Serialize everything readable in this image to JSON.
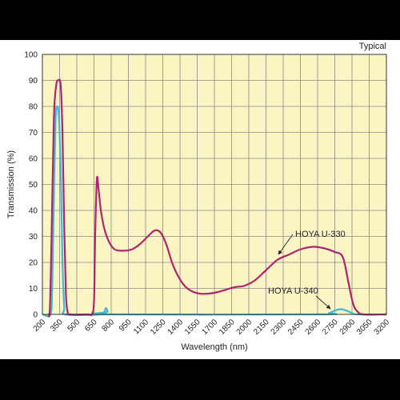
{
  "chart_data": {
    "type": "line",
    "note": "Typical",
    "xlabel": "Wavelength (nm)",
    "ylabel": "Transmission (%)",
    "xlim": [
      200,
      3200
    ],
    "ylim": [
      0,
      100
    ],
    "x_ticks": [
      200,
      350,
      500,
      650,
      800,
      950,
      1100,
      1250,
      1400,
      1550,
      1700,
      1850,
      2000,
      2150,
      2300,
      2450,
      2600,
      2750,
      2900,
      3050,
      3200
    ],
    "y_ticks": [
      0,
      10,
      20,
      30,
      40,
      50,
      60,
      70,
      80,
      90,
      100
    ],
    "grid": true,
    "background_color": "#fbf5c4",
    "grid_color": "#8a8a8a",
    "series": [
      {
        "name": "HOYA U-330",
        "color": "#b0236e",
        "points": [
          [
            250,
            0
          ],
          [
            265,
            2
          ],
          [
            280,
            30
          ],
          [
            300,
            75
          ],
          [
            320,
            88
          ],
          [
            340,
            90
          ],
          [
            360,
            88
          ],
          [
            375,
            70
          ],
          [
            390,
            35
          ],
          [
            405,
            8
          ],
          [
            420,
            1
          ],
          [
            440,
            0
          ],
          [
            600,
            0
          ],
          [
            630,
            0
          ],
          [
            650,
            5
          ],
          [
            660,
            30
          ],
          [
            675,
            52
          ],
          [
            690,
            48
          ],
          [
            710,
            40
          ],
          [
            740,
            33
          ],
          [
            780,
            28
          ],
          [
            830,
            25
          ],
          [
            900,
            24.5
          ],
          [
            980,
            25
          ],
          [
            1050,
            27
          ],
          [
            1120,
            30
          ],
          [
            1180,
            32.3
          ],
          [
            1230,
            31.5
          ],
          [
            1280,
            27
          ],
          [
            1330,
            20
          ],
          [
            1380,
            15
          ],
          [
            1440,
            11
          ],
          [
            1500,
            9
          ],
          [
            1570,
            8
          ],
          [
            1650,
            8
          ],
          [
            1720,
            8.5
          ],
          [
            1800,
            9.5
          ],
          [
            1880,
            10.5
          ],
          [
            1960,
            11
          ],
          [
            2050,
            13
          ],
          [
            2150,
            17
          ],
          [
            2250,
            21
          ],
          [
            2350,
            23
          ],
          [
            2450,
            25
          ],
          [
            2560,
            26
          ],
          [
            2650,
            25.5
          ],
          [
            2750,
            24
          ],
          [
            2820,
            22
          ],
          [
            2870,
            12
          ],
          [
            2910,
            4
          ],
          [
            2950,
            1
          ],
          [
            3000,
            0
          ],
          [
            3200,
            0
          ]
        ]
      },
      {
        "name": "HOYA U-340",
        "color": "#3cb9d3",
        "points": [
          [
            200,
            0
          ],
          [
            270,
            0
          ],
          [
            285,
            10
          ],
          [
            300,
            45
          ],
          [
            315,
            75
          ],
          [
            330,
            80
          ],
          [
            345,
            75
          ],
          [
            360,
            55
          ],
          [
            375,
            20
          ],
          [
            390,
            3
          ],
          [
            400,
            0
          ],
          [
            720,
            0
          ],
          [
            740,
            1
          ],
          [
            755,
            2.5
          ],
          [
            770,
            1
          ],
          [
            790,
            0
          ],
          [
            2600,
            0
          ],
          [
            2700,
            0.5
          ],
          [
            2750,
            1.5
          ],
          [
            2800,
            2
          ],
          [
            2850,
            1.5
          ],
          [
            2900,
            0.5
          ],
          [
            2950,
            0
          ],
          [
            3200,
            0
          ]
        ]
      }
    ],
    "annotations": [
      {
        "text": "HOYA U-330",
        "series": "HOYA U-330"
      },
      {
        "text": "HOYA U-340",
        "series": "HOYA U-340"
      }
    ]
  }
}
